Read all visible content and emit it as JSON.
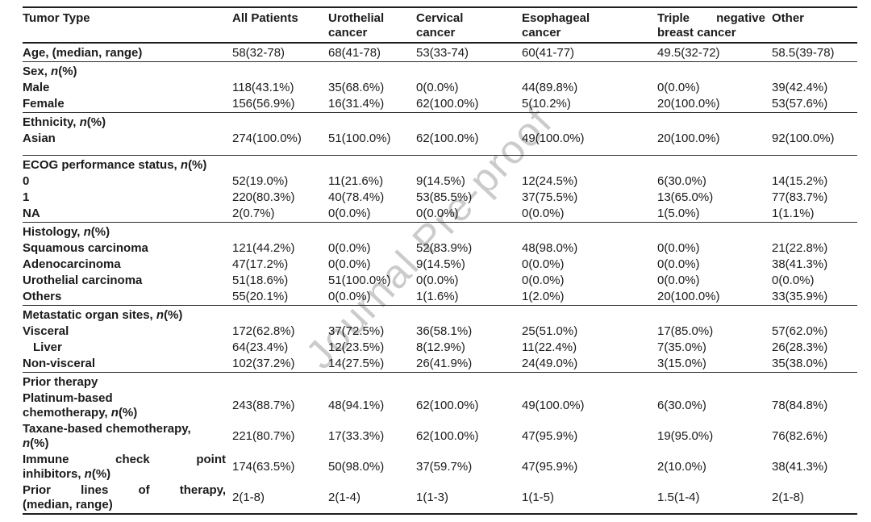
{
  "watermark": "Journal Pre-proof",
  "table": {
    "columns": [
      {
        "lines": [
          {
            "t": "Tumor Type"
          }
        ]
      },
      {
        "lines": [
          {
            "t": "All Patients"
          }
        ]
      },
      {
        "lines": [
          {
            "t": "Urothelial"
          },
          {
            "t": "cancer"
          }
        ]
      },
      {
        "lines": [
          {
            "t": "Cervical"
          },
          {
            "t": "cancer"
          }
        ]
      },
      {
        "lines": [
          {
            "t": "Esophageal"
          },
          {
            "t": "cancer"
          }
        ]
      },
      {
        "lines": [
          {
            "t": "Triple negative",
            "j": true
          },
          {
            "t": "breast cancer"
          }
        ]
      },
      {
        "lines": [
          {
            "t": "Other"
          }
        ]
      }
    ],
    "sections": [
      {
        "rows": [
          {
            "label": {
              "lines": [
                {
                  "t": "Age, (median, range)"
                }
              ]
            },
            "values": [
              "58(32-78)",
              "68(41-78)",
              "53(33-74)",
              "60(41-77)",
              "49.5(32-72)",
              "58.5(39-78)"
            ]
          }
        ]
      },
      {
        "rows": [
          {
            "label": {
              "lines": [
                {
                  "t": "Sex, *n*(%)"
                }
              ]
            },
            "values": []
          },
          {
            "label": {
              "lines": [
                {
                  "t": "Male"
                }
              ]
            },
            "values": [
              "118(43.1%)",
              "35(68.6%)",
              "0(0.0%)",
              "44(89.8%)",
              "0(0.0%)",
              "39(42.4%)"
            ]
          },
          {
            "label": {
              "lines": [
                {
                  "t": "Female"
                }
              ]
            },
            "values": [
              "156(56.9%)",
              "16(31.4%)",
              "62(100.0%)",
              "5(10.2%)",
              "20(100.0%)",
              "53(57.6%)"
            ]
          }
        ]
      },
      {
        "pad_bottom": true,
        "rows": [
          {
            "label": {
              "lines": [
                {
                  "t": "Ethnicity, *n*(%)"
                }
              ]
            },
            "values": []
          },
          {
            "label": {
              "lines": [
                {
                  "t": "Asian"
                }
              ]
            },
            "values": [
              "274(100.0%)",
              "51(100.0%)",
              "62(100.0%)",
              "49(100.0%)",
              "20(100.0%)",
              "92(100.0%)"
            ]
          }
        ]
      },
      {
        "rows": [
          {
            "label": {
              "lines": [
                {
                  "t": "ECOG performance status, *n*(%)"
                }
              ]
            },
            "values": []
          },
          {
            "label": {
              "lines": [
                {
                  "t": "0"
                }
              ]
            },
            "values": [
              "52(19.0%)",
              "11(21.6%)",
              "9(14.5%)",
              "12(24.5%)",
              "6(30.0%)",
              "14(15.2%)"
            ]
          },
          {
            "label": {
              "lines": [
                {
                  "t": "1"
                }
              ]
            },
            "values": [
              "220(80.3%)",
              "40(78.4%)",
              "53(85.5%)",
              "37(75.5%)",
              "13(65.0%)",
              "77(83.7%)"
            ]
          },
          {
            "label": {
              "lines": [
                {
                  "t": "NA"
                }
              ]
            },
            "values": [
              "2(0.7%)",
              "0(0.0%)",
              "0(0.0%)",
              "0(0.0%)",
              "1(5.0%)",
              "1(1.1%)"
            ]
          }
        ]
      },
      {
        "rows": [
          {
            "label": {
              "lines": [
                {
                  "t": "Histology, *n*(%)"
                }
              ]
            },
            "values": []
          },
          {
            "label": {
              "lines": [
                {
                  "t": "Squamous carcinoma"
                }
              ]
            },
            "values": [
              "121(44.2%)",
              "0(0.0%)",
              "52(83.9%)",
              "48(98.0%)",
              "0(0.0%)",
              "21(22.8%)"
            ]
          },
          {
            "label": {
              "lines": [
                {
                  "t": "Adenocarcinoma"
                }
              ]
            },
            "values": [
              "47(17.2%)",
              "0(0.0%)",
              "9(14.5%)",
              "0(0.0%)",
              "0(0.0%)",
              "38(41.3%)"
            ]
          },
          {
            "label": {
              "lines": [
                {
                  "t": "Urothelial carcinoma"
                }
              ]
            },
            "values": [
              "51(18.6%)",
              "51(100.0%)",
              "0(0.0%)",
              "0(0.0%)",
              "0(0.0%)",
              "0(0.0%)"
            ]
          },
          {
            "label": {
              "lines": [
                {
                  "t": "Others"
                }
              ]
            },
            "values": [
              "55(20.1%)",
              "0(0.0%)",
              "1(1.6%)",
              "1(2.0%)",
              "20(100.0%)",
              "33(35.9%)"
            ]
          }
        ]
      },
      {
        "rows": [
          {
            "label": {
              "lines": [
                {
                  "t": "Metastatic organ sites, *n*(%)"
                }
              ]
            },
            "values": []
          },
          {
            "label": {
              "lines": [
                {
                  "t": "Visceral"
                }
              ]
            },
            "values": [
              "172(62.8%)",
              "37(72.5%)",
              "36(58.1%)",
              "25(51.0%)",
              "17(85.0%)",
              "57(62.0%)"
            ]
          },
          {
            "label": {
              "indent": true,
              "lines": [
                {
                  "t": "Liver"
                }
              ]
            },
            "values": [
              "64(23.4%)",
              "12(23.5%)",
              "8(12.9%)",
              "11(22.4%)",
              "7(35.0%)",
              "26(28.3%)"
            ]
          },
          {
            "label": {
              "lines": [
                {
                  "t": "Non-visceral"
                }
              ]
            },
            "values": [
              "102(37.2%)",
              "14(27.5%)",
              "26(41.9%)",
              "24(49.0%)",
              "3(15.0%)",
              "35(38.0%)"
            ]
          }
        ]
      },
      {
        "rows": [
          {
            "label": {
              "lines": [
                {
                  "t": "Prior therapy"
                }
              ]
            },
            "values": []
          },
          {
            "label": {
              "lines": [
                {
                  "t": "Platinum-based"
                },
                {
                  "t": "chemotherapy, *n*(%)"
                }
              ]
            },
            "values": [
              "243(88.7%)",
              "48(94.1%)",
              "62(100.0%)",
              "49(100.0%)",
              "6(30.0%)",
              "78(84.8%)"
            ]
          },
          {
            "label": {
              "lines": [
                {
                  "t": "Taxane-based chemotherapy,"
                },
                {
                  "t": "*n*(%)"
                }
              ]
            },
            "values": [
              "221(80.7%)",
              "17(33.3%)",
              "62(100.0%)",
              "47(95.9%)",
              "19(95.0%)",
              "76(82.6%)"
            ]
          },
          {
            "label": {
              "lines": [
                {
                  "t": "Immune check point",
                  "j": true
                },
                {
                  "t": "inhibitors, *n*(%)"
                }
              ]
            },
            "values": [
              "174(63.5%)",
              "50(98.0%)",
              "37(59.7%)",
              "47(95.9%)",
              "2(10.0%)",
              "38(41.3%)"
            ]
          },
          {
            "label": {
              "lines": [
                {
                  "t": "Prior lines of therapy,",
                  "j": true
                },
                {
                  "t": "(median, range)"
                }
              ]
            },
            "values": [
              "2(1-8)",
              "2(1-4)",
              "1(1-3)",
              "1(1-5)",
              "1.5(1-4)",
              "2(1-8)"
            ]
          }
        ]
      }
    ]
  }
}
